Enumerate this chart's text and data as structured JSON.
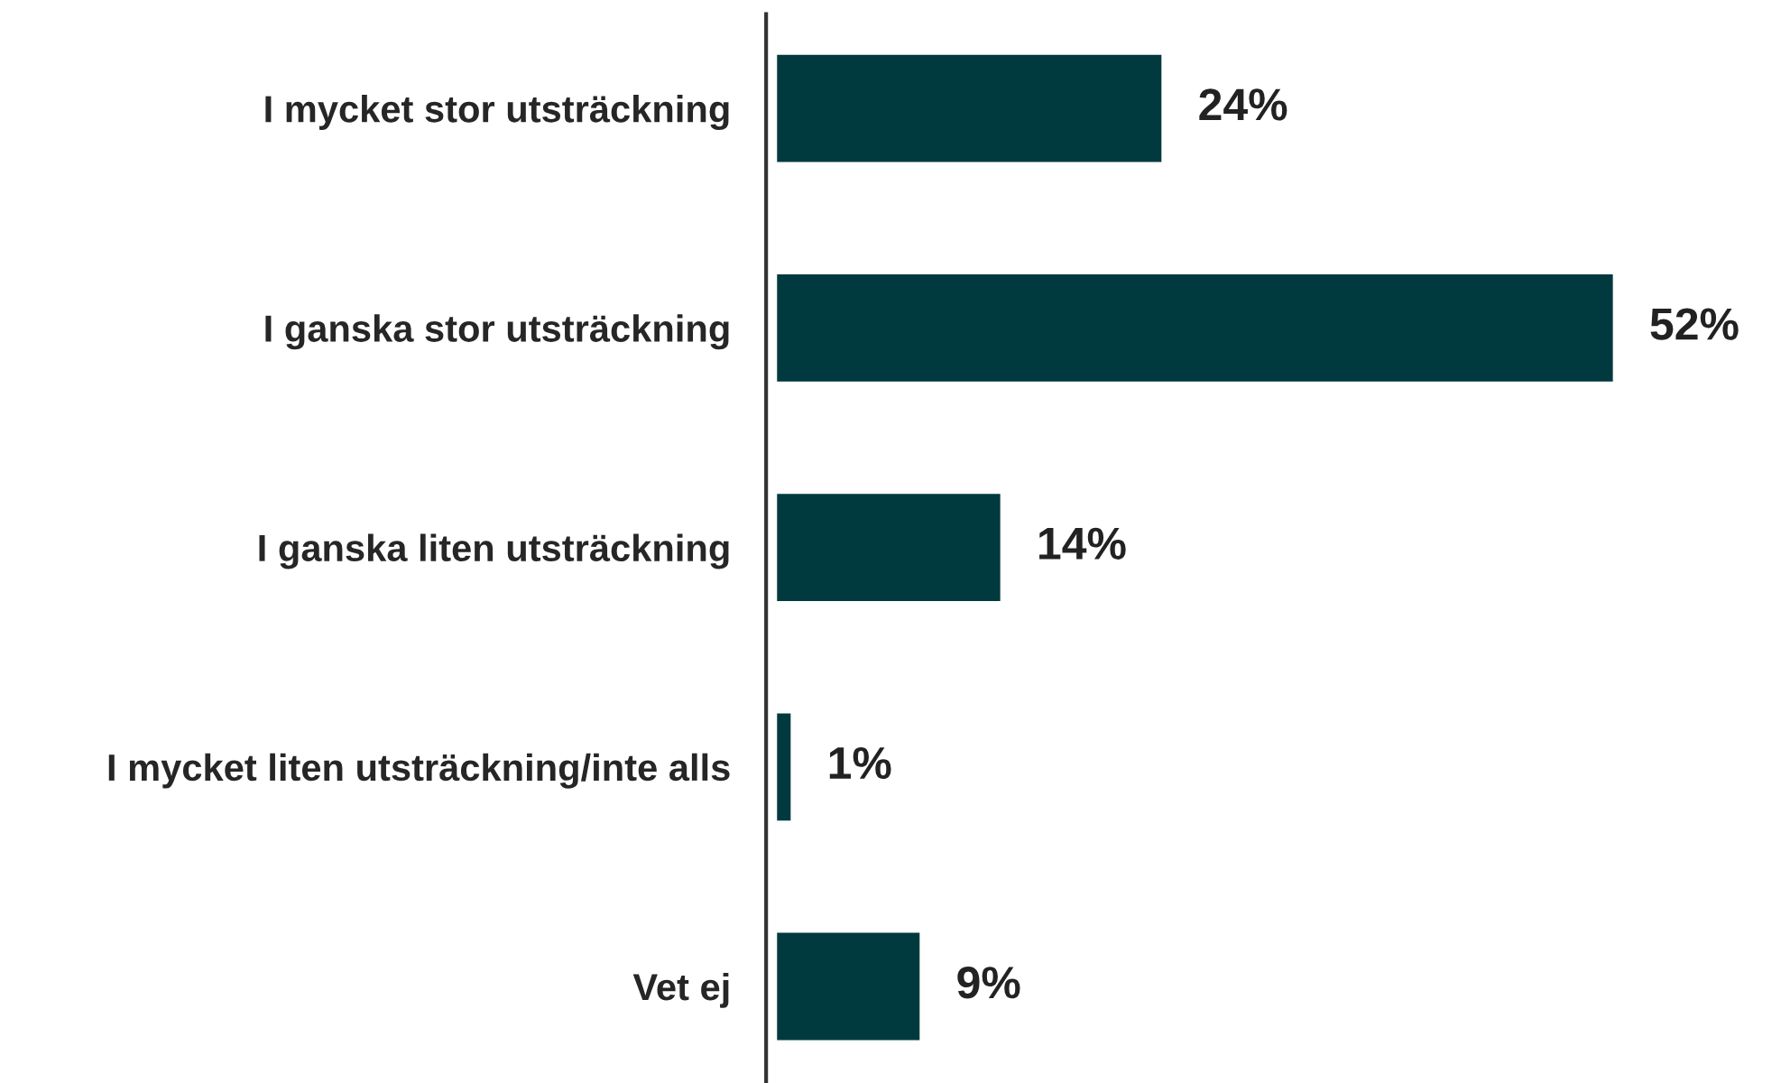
{
  "chart_data": {
    "type": "bar",
    "orientation": "horizontal",
    "categories": [
      "I mycket stor utsträckning",
      "I ganska stor utsträckning",
      "I ganska liten utsträckning",
      "I mycket liten utsträckning/inte alls",
      "Vet ej"
    ],
    "values": [
      24,
      52,
      14,
      1,
      9
    ],
    "value_labels": [
      "24%",
      "52%",
      "14%",
      "1%",
      "9%"
    ],
    "color": "#003a3e",
    "grid": false,
    "legend": false
  }
}
